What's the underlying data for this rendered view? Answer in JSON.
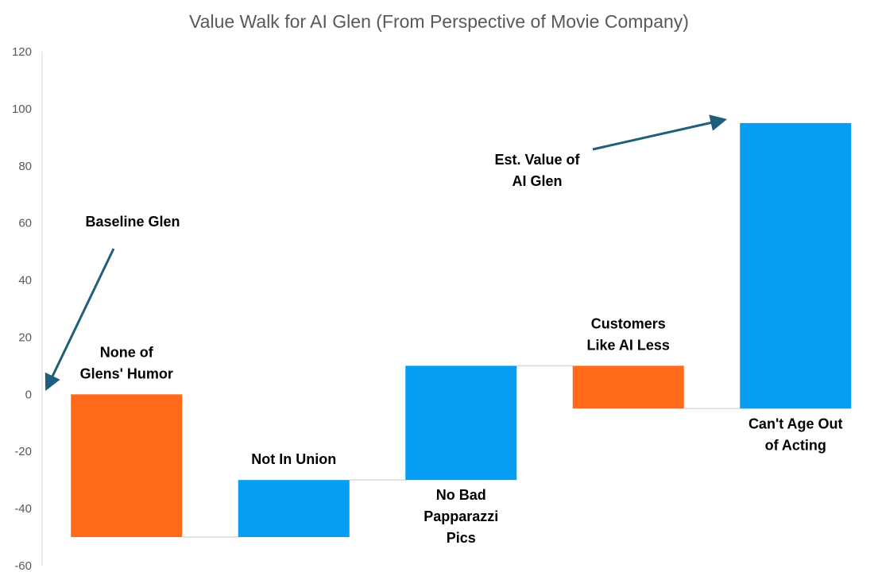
{
  "chart_data": {
    "type": "bar",
    "subtype": "waterfall",
    "title": "Value Walk for AI Glen (From Perspective of Movie Company)",
    "xlabel": "",
    "ylabel": "",
    "ylim": [
      -60,
      120
    ],
    "y_ticks": [
      120,
      100,
      80,
      60,
      40,
      20,
      0,
      -20,
      -40,
      -60
    ],
    "grid": false,
    "legend": "none",
    "bars": [
      {
        "label": [
          "None of",
          "Glens' Humor"
        ],
        "start": 0,
        "end": -50,
        "color": "#FF6A1A",
        "label_position": "above"
      },
      {
        "label": [
          "Not In Union"
        ],
        "start": -50,
        "end": -30,
        "color": "#079DF2",
        "label_position": "above"
      },
      {
        "label": [
          "No Bad",
          "Papparazzi",
          "Pics"
        ],
        "start": -30,
        "end": 10,
        "color": "#079DF2",
        "label_position": "below"
      },
      {
        "label": [
          "Customers",
          "Like AI Less"
        ],
        "start": 10,
        "end": -5,
        "color": "#FF6A1A",
        "label_position": "above"
      },
      {
        "label": [
          "Can't Age Out",
          "of Acting"
        ],
        "start": -5,
        "end": 95,
        "color": "#079DF2",
        "label_position": "below"
      }
    ],
    "annotations": [
      {
        "text": [
          "Baseline Glen"
        ],
        "points_to_value": 0
      },
      {
        "text": [
          "Est. Value of",
          "AI Glen"
        ],
        "points_to_value": 95
      }
    ],
    "colors": {
      "negative": "#FF6A1A",
      "positive": "#079DF2",
      "connector": "#D9D9D9",
      "arrow": "#1F5F7A",
      "axis": "#D9D9D9",
      "text": "#595959"
    }
  }
}
